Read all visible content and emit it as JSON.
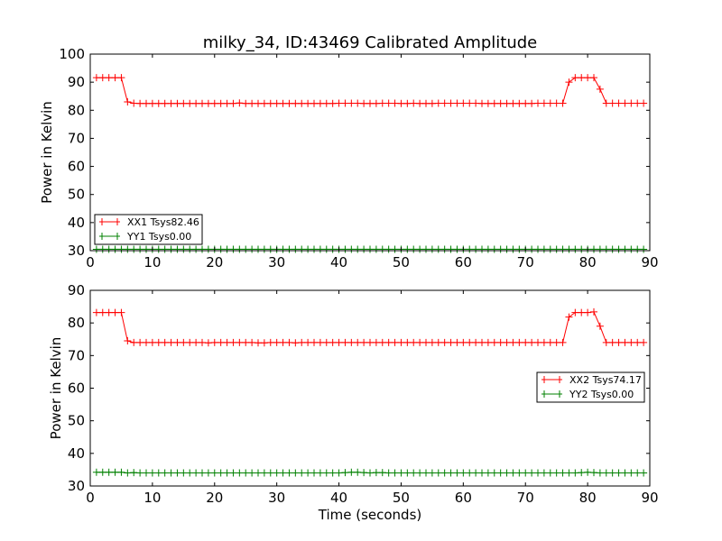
{
  "title": "milky_34, ID:43469 Calibrated Amplitude",
  "colors": {
    "red": "#ff0000",
    "green": "#008000",
    "axes": "#000000",
    "background": "#ffffff"
  },
  "chart_data": [
    {
      "type": "line",
      "marker": "plus",
      "xlabel": "",
      "ylabel": "Power in Kelvin",
      "xlim": [
        0,
        90
      ],
      "ylim": [
        30,
        100
      ],
      "xticks": [
        0,
        10,
        20,
        30,
        40,
        50,
        60,
        70,
        80,
        90
      ],
      "yticks": [
        30,
        40,
        50,
        60,
        70,
        80,
        90,
        100
      ],
      "grid": false,
      "legend_placement": "lower-left",
      "series": [
        {
          "name": "XX1 Tsys82.46",
          "color": "#ff0000",
          "x": [
            1,
            2,
            3,
            4,
            5,
            6,
            7,
            8,
            9,
            10,
            11,
            12,
            13,
            14,
            15,
            16,
            17,
            18,
            19,
            20,
            21,
            22,
            23,
            24,
            25,
            26,
            27,
            28,
            29,
            30,
            31,
            32,
            33,
            34,
            35,
            36,
            37,
            38,
            39,
            40,
            41,
            42,
            43,
            44,
            45,
            46,
            47,
            48,
            49,
            50,
            51,
            52,
            53,
            54,
            55,
            56,
            57,
            58,
            59,
            60,
            61,
            62,
            63,
            64,
            65,
            66,
            67,
            68,
            69,
            70,
            71,
            72,
            73,
            74,
            75,
            76,
            77,
            78,
            79,
            80,
            81,
            82,
            83,
            84,
            85,
            86,
            87,
            88,
            89
          ],
          "y": [
            91.6,
            91.6,
            91.6,
            91.6,
            91.6,
            83.0,
            82.5,
            82.4,
            82.4,
            82.4,
            82.4,
            82.4,
            82.4,
            82.4,
            82.4,
            82.4,
            82.4,
            82.4,
            82.4,
            82.4,
            82.4,
            82.4,
            82.4,
            82.6,
            82.4,
            82.4,
            82.4,
            82.4,
            82.4,
            82.4,
            82.4,
            82.4,
            82.4,
            82.4,
            82.4,
            82.4,
            82.4,
            82.4,
            82.4,
            82.5,
            82.5,
            82.5,
            82.5,
            82.4,
            82.4,
            82.4,
            82.5,
            82.5,
            82.5,
            82.4,
            82.4,
            82.5,
            82.4,
            82.4,
            82.4,
            82.5,
            82.5,
            82.5,
            82.5,
            82.5,
            82.5,
            82.5,
            82.4,
            82.4,
            82.4,
            82.4,
            82.4,
            82.4,
            82.4,
            82.4,
            82.4,
            82.5,
            82.5,
            82.5,
            82.5,
            82.5,
            90.0,
            91.6,
            91.6,
            91.6,
            91.6,
            87.5,
            82.5,
            82.5,
            82.5,
            82.5,
            82.5,
            82.5,
            82.5
          ]
        },
        {
          "name": "YY1 Tsys0.00",
          "color": "#008000",
          "x": [
            1,
            2,
            3,
            4,
            5,
            6,
            7,
            8,
            9,
            10,
            11,
            12,
            13,
            14,
            15,
            16,
            17,
            18,
            19,
            20,
            21,
            22,
            23,
            24,
            25,
            26,
            27,
            28,
            29,
            30,
            31,
            32,
            33,
            34,
            35,
            36,
            37,
            38,
            39,
            40,
            41,
            42,
            43,
            44,
            45,
            46,
            47,
            48,
            49,
            50,
            51,
            52,
            53,
            54,
            55,
            56,
            57,
            58,
            59,
            60,
            61,
            62,
            63,
            64,
            65,
            66,
            67,
            68,
            69,
            70,
            71,
            72,
            73,
            74,
            75,
            76,
            77,
            78,
            79,
            80,
            81,
            82,
            83,
            84,
            85,
            86,
            87,
            88,
            89
          ],
          "y": [
            30.5,
            30.5,
            30.5,
            30.5,
            30.5,
            30.5,
            30.5,
            30.5,
            30.5,
            30.5,
            30.5,
            30.5,
            30.5,
            30.5,
            30.5,
            30.5,
            30.5,
            30.5,
            30.5,
            30.5,
            30.5,
            30.5,
            30.5,
            30.5,
            30.5,
            30.5,
            30.5,
            30.5,
            30.5,
            30.5,
            30.5,
            30.5,
            30.5,
            30.5,
            30.5,
            30.5,
            30.5,
            30.5,
            30.5,
            30.5,
            30.5,
            30.5,
            30.5,
            30.5,
            30.5,
            30.5,
            30.5,
            30.5,
            30.5,
            30.5,
            30.5,
            30.5,
            30.5,
            30.5,
            30.5,
            30.5,
            30.5,
            30.5,
            30.5,
            30.5,
            30.5,
            30.5,
            30.5,
            30.5,
            30.5,
            30.5,
            30.5,
            30.5,
            30.5,
            30.5,
            30.5,
            30.5,
            30.5,
            30.5,
            30.5,
            30.5,
            30.5,
            30.5,
            30.5,
            30.5,
            30.5,
            30.5,
            30.5,
            30.5,
            30.5,
            30.5,
            30.5,
            30.5,
            30.5
          ]
        }
      ]
    },
    {
      "type": "line",
      "marker": "plus",
      "xlabel": "Time (seconds)",
      "ylabel": "Power in Kelvin",
      "xlim": [
        0,
        90
      ],
      "ylim": [
        30,
        90
      ],
      "xticks": [
        0,
        10,
        20,
        30,
        40,
        50,
        60,
        70,
        80,
        90
      ],
      "yticks": [
        30,
        40,
        50,
        60,
        70,
        80,
        90
      ],
      "grid": false,
      "legend_placement": "center-right",
      "series": [
        {
          "name": "XX2 Tsys74.17",
          "color": "#ff0000",
          "x": [
            1,
            2,
            3,
            4,
            5,
            6,
            7,
            8,
            9,
            10,
            11,
            12,
            13,
            14,
            15,
            16,
            17,
            18,
            19,
            20,
            21,
            22,
            23,
            24,
            25,
            26,
            27,
            28,
            29,
            30,
            31,
            32,
            33,
            34,
            35,
            36,
            37,
            38,
            39,
            40,
            41,
            42,
            43,
            44,
            45,
            46,
            47,
            48,
            49,
            50,
            51,
            52,
            53,
            54,
            55,
            56,
            57,
            58,
            59,
            60,
            61,
            62,
            63,
            64,
            65,
            66,
            67,
            68,
            69,
            70,
            71,
            72,
            73,
            74,
            75,
            76,
            77,
            78,
            79,
            80,
            81,
            82,
            83,
            84,
            85,
            86,
            87,
            88,
            89
          ],
          "y": [
            83.2,
            83.2,
            83.2,
            83.2,
            83.2,
            74.5,
            74.0,
            74.0,
            74.0,
            74.0,
            74.0,
            74.0,
            74.0,
            74.0,
            74.0,
            74.0,
            74.0,
            74.0,
            73.9,
            74.0,
            74.0,
            74.0,
            74.0,
            74.0,
            74.0,
            74.0,
            73.9,
            73.9,
            74.0,
            74.0,
            74.0,
            74.0,
            73.9,
            74.0,
            74.0,
            74.0,
            74.0,
            74.0,
            74.0,
            74.0,
            74.0,
            74.0,
            74.0,
            74.0,
            74.0,
            74.0,
            74.0,
            74.0,
            74.0,
            74.0,
            74.0,
            74.0,
            74.0,
            74.0,
            74.0,
            74.0,
            74.0,
            74.0,
            74.0,
            74.0,
            74.0,
            74.0,
            74.0,
            74.0,
            74.0,
            74.0,
            74.0,
            74.0,
            74.0,
            74.0,
            74.0,
            74.0,
            74.0,
            74.0,
            74.0,
            74.0,
            81.8,
            83.2,
            83.2,
            83.2,
            83.4,
            79.0,
            74.0,
            74.0,
            74.0,
            74.0,
            74.0,
            74.0,
            74.0
          ]
        },
        {
          "name": "YY2 Tsys0.00",
          "color": "#008000",
          "x": [
            1,
            2,
            3,
            4,
            5,
            6,
            7,
            8,
            9,
            10,
            11,
            12,
            13,
            14,
            15,
            16,
            17,
            18,
            19,
            20,
            21,
            22,
            23,
            24,
            25,
            26,
            27,
            28,
            29,
            30,
            31,
            32,
            33,
            34,
            35,
            36,
            37,
            38,
            39,
            40,
            41,
            42,
            43,
            44,
            45,
            46,
            47,
            48,
            49,
            50,
            51,
            52,
            53,
            54,
            55,
            56,
            57,
            58,
            59,
            60,
            61,
            62,
            63,
            64,
            65,
            66,
            67,
            68,
            69,
            70,
            71,
            72,
            73,
            74,
            75,
            76,
            77,
            78,
            79,
            80,
            81,
            82,
            83,
            84,
            85,
            86,
            87,
            88,
            89
          ],
          "y": [
            34.2,
            34.2,
            34.2,
            34.2,
            34.2,
            34.0,
            34.1,
            34.0,
            34.0,
            34.0,
            34.0,
            34.0,
            34.0,
            34.0,
            34.0,
            34.0,
            34.0,
            34.0,
            34.0,
            34.0,
            34.0,
            34.0,
            34.0,
            34.0,
            34.0,
            34.0,
            34.0,
            34.0,
            34.0,
            34.0,
            34.0,
            34.0,
            34.0,
            34.0,
            34.0,
            34.0,
            34.0,
            34.0,
            34.0,
            34.0,
            34.1,
            34.2,
            34.2,
            34.1,
            34.0,
            34.1,
            34.1,
            34.0,
            34.0,
            34.0,
            34.0,
            34.0,
            34.0,
            34.0,
            34.0,
            34.0,
            34.0,
            34.0,
            34.0,
            34.0,
            34.0,
            34.0,
            34.0,
            34.0,
            34.0,
            34.0,
            34.0,
            34.0,
            34.0,
            34.0,
            34.0,
            34.0,
            34.0,
            34.0,
            34.0,
            34.0,
            34.0,
            34.0,
            34.1,
            34.2,
            34.1,
            34.0,
            34.0,
            34.0,
            34.0,
            34.0,
            34.0,
            34.0,
            34.0
          ]
        }
      ]
    }
  ]
}
